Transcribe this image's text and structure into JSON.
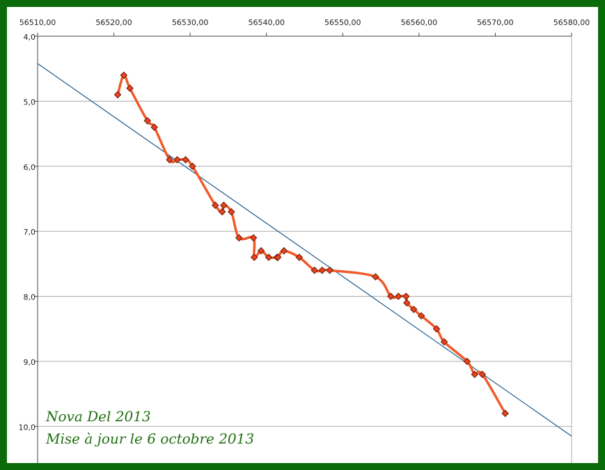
{
  "chart_data": {
    "type": "line",
    "title": "",
    "xlabel": "",
    "ylabel": "",
    "x_axis_position": "top",
    "y_axis_inverted": true,
    "grid": "horizontal",
    "xlim": [
      56510,
      56580
    ],
    "ylim": [
      4.0,
      10.5
    ],
    "x_ticks": [
      56510,
      56520,
      56530,
      56540,
      56550,
      56560,
      56570,
      56580
    ],
    "x_tick_labels": [
      "56510,00",
      "56520,00",
      "56530,00",
      "56540,00",
      "56550,00",
      "56560,00",
      "56570,00",
      "56580,00"
    ],
    "y_ticks": [
      4,
      5,
      6,
      7,
      8,
      9,
      10
    ],
    "y_tick_labels": [
      "4,0",
      "5,0",
      "6,0",
      "7,0",
      "8,0",
      "9,0",
      "10,0"
    ],
    "colors": {
      "line": "#f05a28",
      "marker_fill": "#e8431e",
      "marker_edge": "#6a1a08",
      "trend": "#1f5a8a",
      "grid": "#aaaaaa",
      "frame": "#0b6b0b",
      "caption": "#1f6f10"
    },
    "series": [
      {
        "x": [
          56520.5,
          56521.3,
          56522.1,
          56524.4,
          56525.3,
          56527.3,
          56528.3,
          56529.4,
          56530.3,
          56533.3,
          56534.2,
          56534.4,
          56535.4,
          56536.4,
          56538.3,
          56538.4,
          56539.3,
          56540.3,
          56541.4,
          56541.5,
          56542.3,
          56544.3,
          56546.3,
          56547.3,
          56548.3,
          56554.3,
          56556.3,
          56557.3,
          56558.3,
          56558.4,
          56559.3,
          56560.3,
          56562.3,
          56563.3,
          56566.3,
          56567.3,
          56568.3,
          56571.3
        ],
        "values": [
          4.9,
          4.6,
          4.8,
          5.3,
          5.4,
          5.9,
          5.9,
          5.9,
          6.0,
          6.6,
          6.7,
          6.6,
          6.7,
          7.1,
          7.1,
          7.4,
          7.3,
          7.4,
          7.4,
          7.4,
          7.3,
          7.4,
          7.6,
          7.6,
          7.6,
          7.7,
          8.0,
          8.0,
          8.0,
          8.1,
          8.2,
          8.3,
          8.5,
          8.7,
          9.0,
          9.2,
          9.2,
          9.8
        ]
      }
    ],
    "trendline": {
      "type": "linear",
      "x": [
        56510,
        56580
      ],
      "values": [
        4.42,
        10.15
      ]
    }
  },
  "captions": {
    "line1": "Nova Del 2013",
    "line2": "Mise à jour le 6 octobre 2013"
  }
}
